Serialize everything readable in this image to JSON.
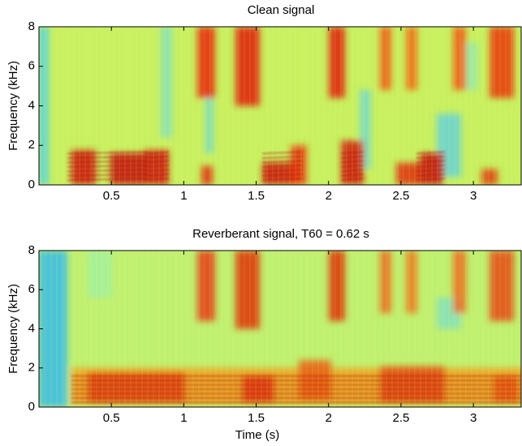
{
  "chart_data": [
    {
      "type": "spectrogram",
      "title": "Clean signal",
      "y_label": "Frequency (kHz)",
      "xlim": [
        0,
        3.33
      ],
      "xticks": [
        0.5,
        1,
        1.5,
        2,
        2.5,
        3
      ],
      "ylim": [
        0,
        8
      ],
      "yticks": [
        0,
        2,
        4,
        6,
        8
      ],
      "colormap": "jet"
    },
    {
      "type": "spectrogram",
      "title": "Reverberant signal, T60 = 0.62 s",
      "y_label": "Frequency (kHz)",
      "x_label": "Time (s)",
      "xlim": [
        0,
        3.33
      ],
      "xticks": [
        0.5,
        1,
        1.5,
        2,
        2.5,
        3
      ],
      "ylim": [
        0,
        8
      ],
      "yticks": [
        0,
        2,
        4,
        6,
        8
      ],
      "colormap": "jet"
    }
  ]
}
